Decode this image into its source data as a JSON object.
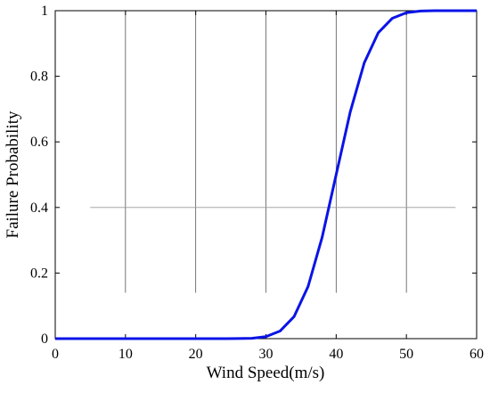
{
  "chart_data": {
    "type": "line",
    "x_label": "Wind Speed(m/s)",
    "y_label": "Failure Probability",
    "x": [
      0,
      2,
      4,
      6,
      8,
      10,
      12,
      14,
      16,
      18,
      20,
      22,
      24,
      26,
      28,
      30,
      32,
      34,
      36,
      38,
      40,
      42,
      44,
      46,
      48,
      50,
      52,
      54,
      56,
      58,
      60
    ],
    "series": [
      {
        "name": "Failure Probability",
        "color": "#0a14e6",
        "values": [
          0,
          0,
          0,
          0,
          0,
          0,
          0,
          0,
          0,
          0,
          0,
          0,
          0,
          0.0002,
          0.001,
          0.006,
          0.023,
          0.067,
          0.159,
          0.309,
          0.5,
          0.691,
          0.841,
          0.933,
          0.977,
          0.994,
          0.999,
          1,
          1,
          1,
          1
        ]
      }
    ],
    "xlim": [
      0,
      60
    ],
    "xticks": [
      0,
      10,
      20,
      30,
      40,
      50,
      60
    ],
    "ylim": [
      0,
      1
    ],
    "yticks": [
      0,
      0.2,
      0.4,
      0.6,
      0.8,
      1
    ],
    "grid": true
  }
}
